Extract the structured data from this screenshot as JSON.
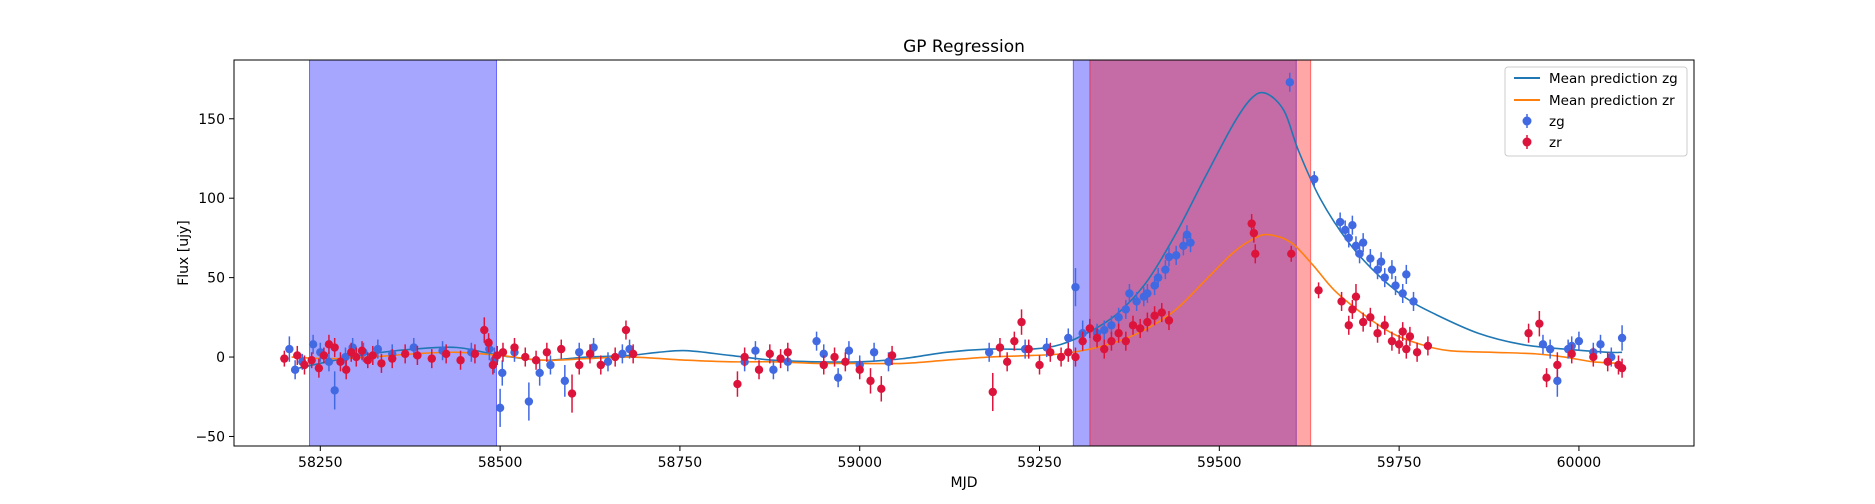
{
  "chart_data": {
    "type": "scatter",
    "title": "GP Regression",
    "xlabel": "MJD",
    "ylabel": "Flux [ujy]",
    "xlim": [
      58130,
      60160
    ],
    "ylim": [
      -56,
      187
    ],
    "xticks": [
      58250,
      58500,
      58750,
      59000,
      59250,
      59500,
      59750,
      60000
    ],
    "yticks": [
      -50,
      0,
      50,
      100,
      150
    ],
    "grid": false,
    "legend_position": "top-right",
    "colors": {
      "zg_line": "#1f77b4",
      "zr_line": "#ff7f0e",
      "zg_points": "#4169e1",
      "zr_points": "#dc143c",
      "blue_band": "#0000ff",
      "red_band": "#ff0000"
    },
    "shaded_regions": [
      {
        "x0": 58235,
        "x1": 58495,
        "color": "#0000ff"
      },
      {
        "x0": 59297,
        "x1": 59607,
        "color": "#0000ff"
      },
      {
        "x0": 59320,
        "x1": 59627,
        "color": "#ff0000"
      }
    ],
    "series": [
      {
        "name": "Mean prediction zg",
        "kind": "line",
        "color": "#1f77b4",
        "x": [
          58210,
          58260,
          58320,
          58380,
          58440,
          58500,
          58560,
          58620,
          58680,
          58720,
          58760,
          58820,
          58880,
          58940,
          59000,
          59060,
          59120,
          59180,
          59240,
          59280,
          59320,
          59360,
          59400,
          59440,
          59480,
          59520,
          59545,
          59565,
          59590,
          59610,
          59640,
          59680,
          59720,
          59760,
          59800,
          59860,
          59920,
          59980,
          60040,
          60060
        ],
        "y": [
          -8,
          -3,
          2,
          5,
          6,
          1,
          -2,
          0,
          1,
          3,
          4,
          1,
          -2,
          -3,
          -3,
          -1,
          3,
          5,
          5,
          8,
          16,
          28,
          48,
          78,
          113,
          147,
          163,
          166,
          155,
          130,
          100,
          72,
          52,
          37,
          27,
          15,
          8,
          5,
          3,
          3
        ]
      },
      {
        "name": "Mean prediction zr",
        "kind": "line",
        "color": "#ff7f0e",
        "x": [
          58210,
          58260,
          58320,
          58380,
          58440,
          58500,
          58560,
          58620,
          58680,
          58760,
          58820,
          58880,
          58940,
          59000,
          59060,
          59120,
          59180,
          59240,
          59280,
          59320,
          59360,
          59400,
          59440,
          59480,
          59520,
          59550,
          59570,
          59600,
          59630,
          59660,
          59700,
          59740,
          59780,
          59820,
          59880,
          59940,
          59980,
          60020,
          60060
        ],
        "y": [
          0,
          -1,
          0,
          2,
          3,
          1,
          -2,
          -1,
          0,
          -2,
          -3,
          -3,
          -4,
          -4,
          -4,
          -2,
          0,
          1,
          2,
          5,
          10,
          18,
          30,
          48,
          66,
          75,
          77,
          72,
          58,
          42,
          27,
          15,
          8,
          4,
          3,
          2,
          0,
          -3,
          -4
        ]
      },
      {
        "name": "zg",
        "kind": "scatter",
        "color": "#4169e1",
        "points": [
          [
            58207,
            5,
            8
          ],
          [
            58215,
            -8,
            6
          ],
          [
            58225,
            -3,
            5
          ],
          [
            58240,
            8,
            6
          ],
          [
            58250,
            3,
            6
          ],
          [
            58262,
            -3,
            6
          ],
          [
            58270,
            -21,
            12
          ],
          [
            58285,
            0,
            6
          ],
          [
            58295,
            6,
            6
          ],
          [
            58310,
            3,
            6
          ],
          [
            58330,
            5,
            6
          ],
          [
            58350,
            2,
            6
          ],
          [
            58380,
            6,
            6
          ],
          [
            58420,
            4,
            6
          ],
          [
            58460,
            3,
            6
          ],
          [
            58485,
            5,
            7
          ],
          [
            58492,
            -2,
            8
          ],
          [
            58500,
            -32,
            12
          ],
          [
            58503,
            -10,
            8
          ],
          [
            58520,
            3,
            6
          ],
          [
            58540,
            -28,
            12
          ],
          [
            58555,
            -10,
            8
          ],
          [
            58570,
            -5,
            6
          ],
          [
            58590,
            -15,
            10
          ],
          [
            58610,
            3,
            6
          ],
          [
            58630,
            6,
            6
          ],
          [
            58650,
            -3,
            6
          ],
          [
            58670,
            2,
            6
          ],
          [
            58680,
            5,
            6
          ],
          [
            58840,
            -3,
            6
          ],
          [
            58855,
            4,
            6
          ],
          [
            58880,
            -8,
            6
          ],
          [
            58900,
            -3,
            6
          ],
          [
            58940,
            10,
            6
          ],
          [
            58950,
            2,
            6
          ],
          [
            58970,
            -13,
            6
          ],
          [
            58985,
            4,
            6
          ],
          [
            59000,
            -5,
            6
          ],
          [
            59020,
            3,
            6
          ],
          [
            59040,
            -3,
            6
          ],
          [
            59180,
            3,
            6
          ],
          [
            59230,
            5,
            6
          ],
          [
            59260,
            6,
            6
          ],
          [
            59290,
            12,
            6
          ],
          [
            59300,
            44,
            12
          ],
          [
            59310,
            15,
            8
          ],
          [
            59320,
            18,
            6
          ],
          [
            59330,
            15,
            6
          ],
          [
            59340,
            17,
            6
          ],
          [
            59350,
            20,
            6
          ],
          [
            59360,
            25,
            6
          ],
          [
            59370,
            30,
            6
          ],
          [
            59375,
            40,
            6
          ],
          [
            59385,
            35,
            6
          ],
          [
            59395,
            38,
            6
          ],
          [
            59400,
            40,
            6
          ],
          [
            59410,
            45,
            6
          ],
          [
            59415,
            50,
            6
          ],
          [
            59425,
            55,
            6
          ],
          [
            59430,
            63,
            6
          ],
          [
            59440,
            64,
            6
          ],
          [
            59450,
            70,
            6
          ],
          [
            59455,
            77,
            6
          ],
          [
            59460,
            72,
            6
          ],
          [
            59598,
            173,
            6
          ],
          [
            59632,
            112,
            5
          ],
          [
            59668,
            85,
            6
          ],
          [
            59675,
            80,
            6
          ],
          [
            59680,
            75,
            6
          ],
          [
            59685,
            83,
            6
          ],
          [
            59690,
            70,
            6
          ],
          [
            59695,
            65,
            6
          ],
          [
            59700,
            72,
            6
          ],
          [
            59710,
            62,
            6
          ],
          [
            59720,
            55,
            6
          ],
          [
            59725,
            60,
            6
          ],
          [
            59730,
            50,
            6
          ],
          [
            59740,
            55,
            6
          ],
          [
            59745,
            45,
            6
          ],
          [
            59755,
            40,
            6
          ],
          [
            59760,
            52,
            6
          ],
          [
            59770,
            35,
            6
          ],
          [
            59950,
            8,
            6
          ],
          [
            59960,
            5,
            6
          ],
          [
            59970,
            -15,
            10
          ],
          [
            59985,
            5,
            6
          ],
          [
            59990,
            7,
            6
          ],
          [
            60000,
            10,
            6
          ],
          [
            60020,
            3,
            6
          ],
          [
            60030,
            8,
            6
          ],
          [
            60045,
            0,
            6
          ],
          [
            60060,
            12,
            8
          ]
        ]
      },
      {
        "name": "zr",
        "kind": "scatter",
        "color": "#dc143c",
        "points": [
          [
            58200,
            -1,
            5
          ],
          [
            58218,
            1,
            6
          ],
          [
            58228,
            -5,
            6
          ],
          [
            58238,
            -2,
            5
          ],
          [
            58248,
            -7,
            6
          ],
          [
            58255,
            1,
            5
          ],
          [
            58262,
            8,
            6
          ],
          [
            58270,
            6,
            6
          ],
          [
            58278,
            -3,
            6
          ],
          [
            58286,
            -8,
            6
          ],
          [
            58293,
            3,
            6
          ],
          [
            58300,
            0,
            6
          ],
          [
            58308,
            4,
            6
          ],
          [
            58316,
            -2,
            5
          ],
          [
            58323,
            1,
            6
          ],
          [
            58335,
            -4,
            6
          ],
          [
            58350,
            -1,
            6
          ],
          [
            58368,
            2,
            6
          ],
          [
            58385,
            1,
            6
          ],
          [
            58405,
            -1,
            6
          ],
          [
            58425,
            2,
            6
          ],
          [
            58445,
            -2,
            6
          ],
          [
            58465,
            2,
            6
          ],
          [
            58478,
            17,
            8
          ],
          [
            58484,
            9,
            6
          ],
          [
            58490,
            -5,
            6
          ],
          [
            58496,
            1,
            6
          ],
          [
            58504,
            3,
            6
          ],
          [
            58520,
            6,
            6
          ],
          [
            58535,
            0,
            6
          ],
          [
            58550,
            -2,
            6
          ],
          [
            58565,
            3,
            6
          ],
          [
            58585,
            5,
            6
          ],
          [
            58600,
            -23,
            12
          ],
          [
            58610,
            -5,
            6
          ],
          [
            58625,
            2,
            6
          ],
          [
            58640,
            -5,
            6
          ],
          [
            58660,
            0,
            6
          ],
          [
            58675,
            17,
            6
          ],
          [
            58685,
            2,
            6
          ],
          [
            58830,
            -17,
            8
          ],
          [
            58840,
            0,
            6
          ],
          [
            58860,
            -8,
            6
          ],
          [
            58875,
            2,
            6
          ],
          [
            58890,
            -1,
            6
          ],
          [
            58900,
            3,
            6
          ],
          [
            58950,
            -5,
            6
          ],
          [
            58965,
            0,
            6
          ],
          [
            58980,
            -3,
            6
          ],
          [
            59000,
            -8,
            6
          ],
          [
            59015,
            -15,
            8
          ],
          [
            59030,
            -20,
            8
          ],
          [
            59045,
            1,
            6
          ],
          [
            59185,
            -22,
            12
          ],
          [
            59195,
            6,
            6
          ],
          [
            59205,
            -3,
            6
          ],
          [
            59215,
            10,
            6
          ],
          [
            59225,
            22,
            8
          ],
          [
            59235,
            5,
            6
          ],
          [
            59250,
            -5,
            6
          ],
          [
            59265,
            3,
            6
          ],
          [
            59280,
            0,
            6
          ],
          [
            59290,
            3,
            6
          ],
          [
            59300,
            0,
            6
          ],
          [
            59310,
            10,
            6
          ],
          [
            59320,
            18,
            6
          ],
          [
            59330,
            12,
            6
          ],
          [
            59340,
            5,
            6
          ],
          [
            59350,
            10,
            6
          ],
          [
            59360,
            15,
            6
          ],
          [
            59370,
            10,
            6
          ],
          [
            59380,
            20,
            6
          ],
          [
            59390,
            18,
            6
          ],
          [
            59400,
            22,
            6
          ],
          [
            59410,
            26,
            6
          ],
          [
            59420,
            28,
            6
          ],
          [
            59430,
            23,
            6
          ],
          [
            59545,
            84,
            6
          ],
          [
            59548,
            78,
            6
          ],
          [
            59550,
            65,
            6
          ],
          [
            59600,
            65,
            5
          ],
          [
            59638,
            42,
            5
          ],
          [
            59670,
            35,
            6
          ],
          [
            59680,
            20,
            6
          ],
          [
            59685,
            30,
            6
          ],
          [
            59690,
            38,
            8
          ],
          [
            59700,
            22,
            6
          ],
          [
            59710,
            25,
            6
          ],
          [
            59720,
            15,
            6
          ],
          [
            59730,
            20,
            6
          ],
          [
            59740,
            10,
            6
          ],
          [
            59750,
            8,
            6
          ],
          [
            59755,
            16,
            6
          ],
          [
            59760,
            5,
            6
          ],
          [
            59765,
            13,
            6
          ],
          [
            59775,
            3,
            6
          ],
          [
            59790,
            7,
            6
          ],
          [
            59930,
            15,
            6
          ],
          [
            59945,
            21,
            8
          ],
          [
            59955,
            -13,
            6
          ],
          [
            59970,
            -5,
            8
          ],
          [
            59990,
            2,
            6
          ],
          [
            60020,
            0,
            6
          ],
          [
            60040,
            -3,
            6
          ],
          [
            60055,
            -5,
            6
          ],
          [
            60060,
            -7,
            6
          ]
        ]
      }
    ]
  }
}
